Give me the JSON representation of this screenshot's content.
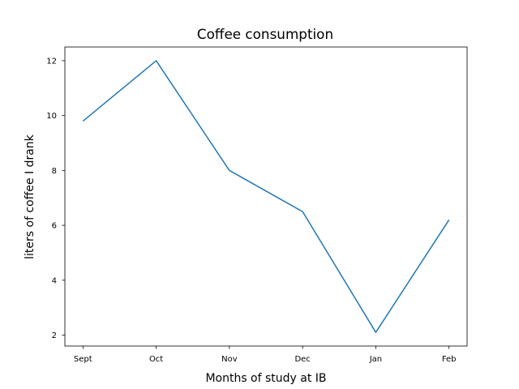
{
  "chart_data": {
    "type": "line",
    "title": "Coffee consumption",
    "xlabel": "Months of study at IB",
    "ylabel": "liters of coffee I drank",
    "categories": [
      "Sept",
      "Oct",
      "Nov",
      "Dec",
      "Jan",
      "Feb"
    ],
    "series": [
      {
        "values": [
          9.8,
          12,
          8,
          6.5,
          2.1,
          6.2
        ],
        "color": "#1f77b4"
      }
    ],
    "y_ticks": [
      2,
      4,
      6,
      8,
      10,
      12
    ],
    "ylim": [
      1.6,
      12.5
    ],
    "grid": false
  }
}
